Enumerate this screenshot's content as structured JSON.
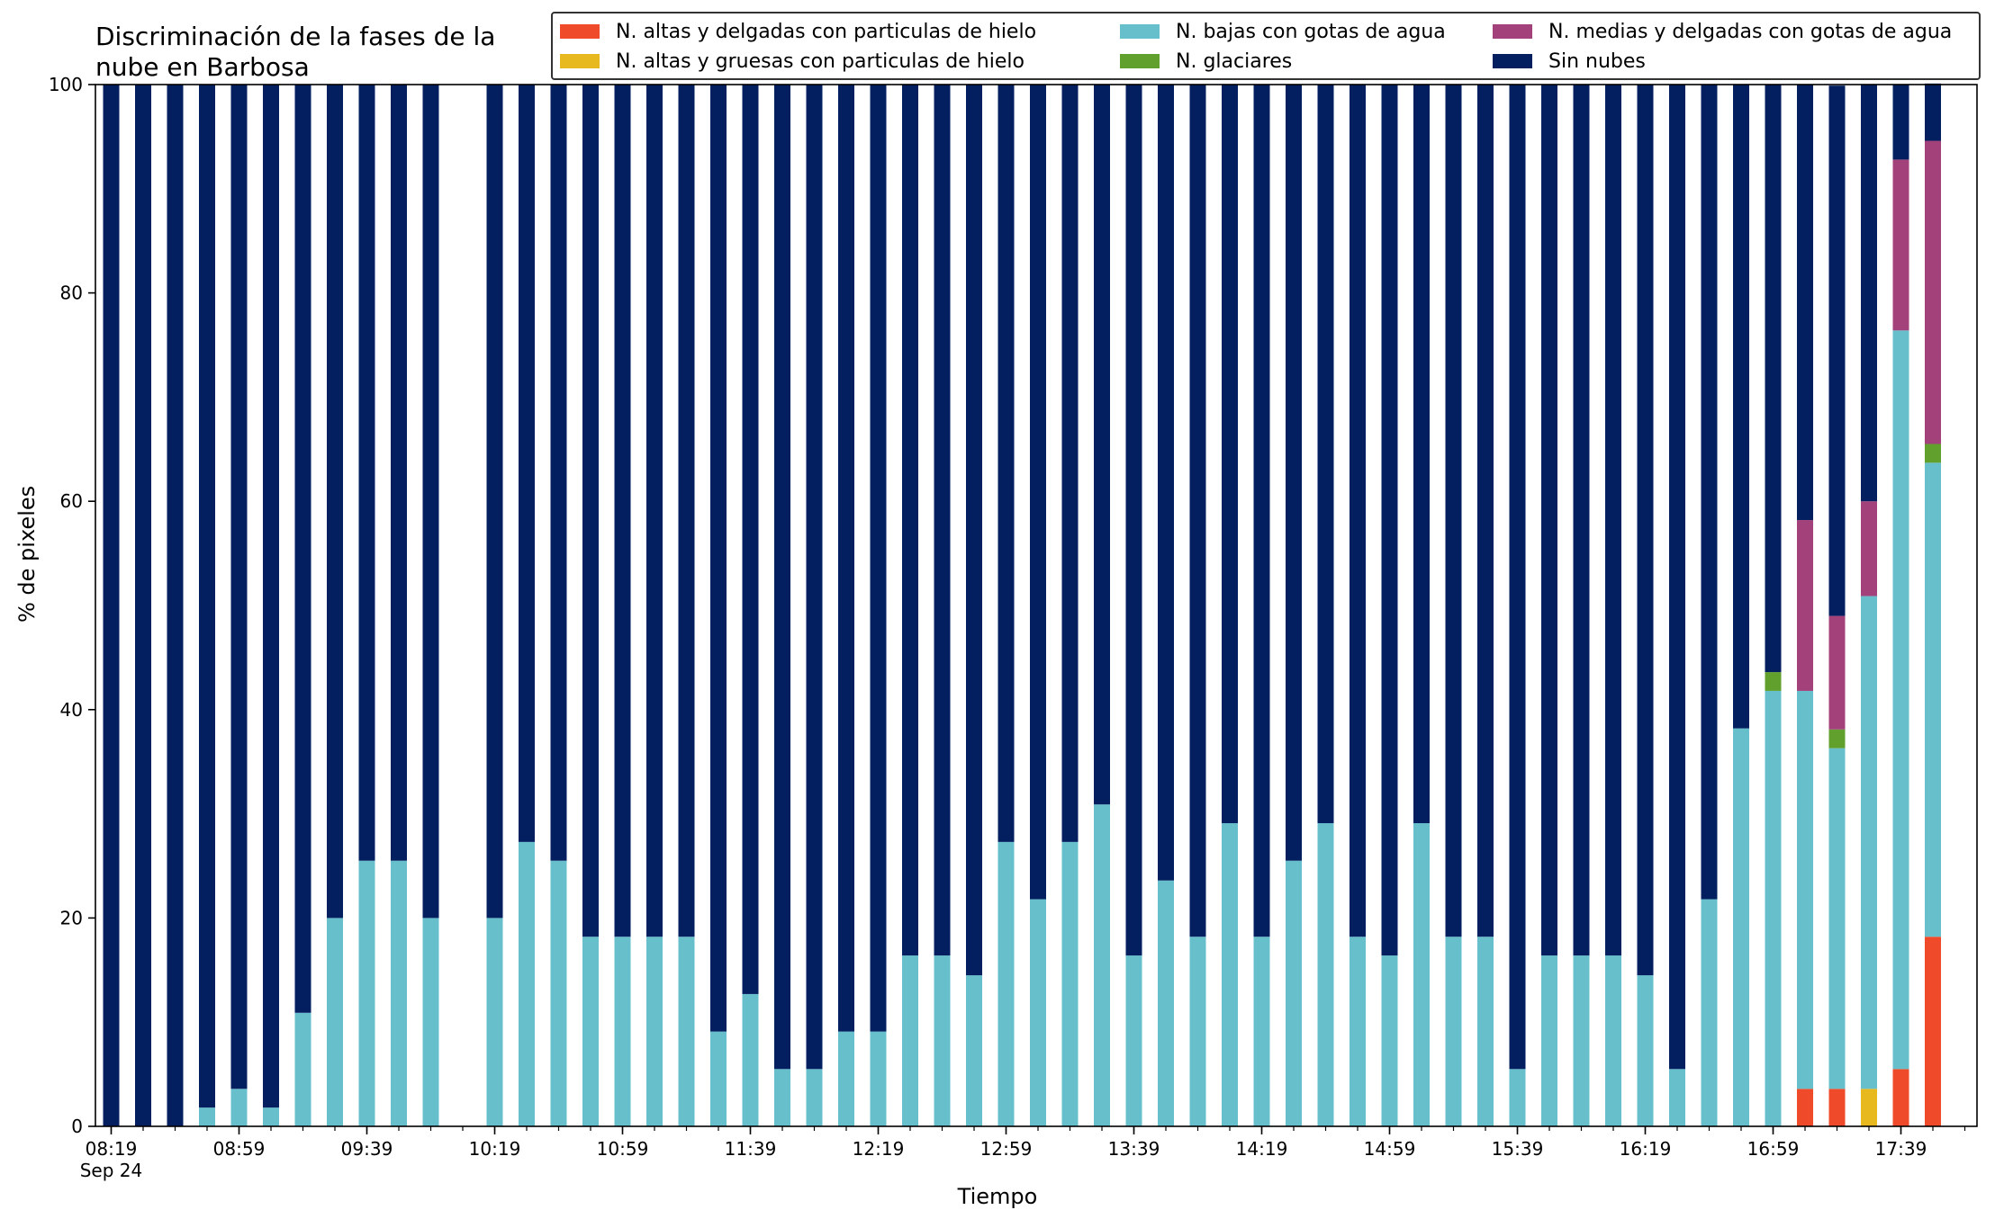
{
  "chart_data": {
    "type": "bar",
    "stacked": true,
    "title": "Discriminación de la fases de la\nnube en Barbosa",
    "xlabel": "Tiempo",
    "ylabel": "% de pixeles",
    "ylim": [
      0,
      100
    ],
    "yticks": [
      0,
      20,
      40,
      60,
      80,
      100
    ],
    "xticks": [
      "08:19\nSep 24",
      "08:59",
      "09:39",
      "10:19",
      "10:59",
      "11:39",
      "12:19",
      "12:59",
      "13:39",
      "14:19",
      "14:59",
      "15:39",
      "16:19",
      "16:59",
      "17:39"
    ],
    "legend_position": "top-right",
    "bar_count": 58,
    "series": [
      {
        "name": "N. altas y delgadas con particulas de hielo",
        "color": "#ef4a2a",
        "values": [
          0,
          0,
          0,
          0,
          0,
          0,
          0,
          0,
          0,
          0,
          0,
          0,
          0,
          0,
          0,
          0,
          0,
          0,
          0,
          0,
          0,
          0,
          0,
          0,
          0,
          0,
          0,
          0,
          0,
          0,
          0,
          0,
          0,
          0,
          0,
          0,
          0,
          0,
          0,
          0,
          0,
          0,
          0,
          0,
          0,
          0,
          0,
          0,
          0,
          0,
          0,
          0,
          0,
          3.6,
          3.6,
          0,
          5.5,
          18.2
        ]
      },
      {
        "name": "N. altas y gruesas con particulas de hielo",
        "color": "#e8b81f",
        "values": [
          0,
          0,
          0,
          0,
          0,
          0,
          0,
          0,
          0,
          0,
          0,
          0,
          0,
          0,
          0,
          0,
          0,
          0,
          0,
          0,
          0,
          0,
          0,
          0,
          0,
          0,
          0,
          0,
          0,
          0,
          0,
          0,
          0,
          0,
          0,
          0,
          0,
          0,
          0,
          0,
          0,
          0,
          0,
          0,
          0,
          0,
          0,
          0,
          0,
          0,
          0,
          0,
          0,
          0,
          0,
          3.6,
          0,
          0
        ]
      },
      {
        "name": "N. bajas con gotas de agua",
        "color": "#67bfcc",
        "values": [
          0,
          0,
          0,
          1.8,
          3.6,
          1.8,
          10.9,
          20,
          25.5,
          25.5,
          20,
          null,
          20,
          27.3,
          25.5,
          18.2,
          18.2,
          18.2,
          18.2,
          9.1,
          12.7,
          5.5,
          5.5,
          9.1,
          9.1,
          16.4,
          16.4,
          14.5,
          27.3,
          21.8,
          27.3,
          30.9,
          16.4,
          23.6,
          18.2,
          29.1,
          18.2,
          25.5,
          29.1,
          18.2,
          16.4,
          29.1,
          18.2,
          18.2,
          5.5,
          16.4,
          16.4,
          16.4,
          14.5,
          5.5,
          21.8,
          38.2,
          41.8,
          38.2,
          32.7,
          47.3,
          70.9,
          45.5
        ]
      },
      {
        "name": "N. glaciares",
        "color": "#62a02e",
        "values": [
          0,
          0,
          0,
          0,
          0,
          0,
          0,
          0,
          0,
          0,
          0,
          0,
          0,
          0,
          0,
          0,
          0,
          0,
          0,
          0,
          0,
          0,
          0,
          0,
          0,
          0,
          0,
          0,
          0,
          0,
          0,
          0,
          0,
          0,
          0,
          0,
          0,
          0,
          0,
          0,
          0,
          0,
          0,
          0,
          0,
          0,
          0,
          0,
          0,
          0,
          0,
          0,
          1.8,
          0,
          1.8,
          0,
          0,
          1.8
        ]
      },
      {
        "name": "N. medias y delgadas con gotas de agua",
        "color": "#a3427a",
        "values": [
          0,
          0,
          0,
          0,
          0,
          0,
          0,
          0,
          0,
          0,
          0,
          0,
          0,
          0,
          0,
          0,
          0,
          0,
          0,
          0,
          0,
          0,
          0,
          0,
          0,
          0,
          0,
          0,
          0,
          0,
          0,
          0,
          0,
          0,
          0,
          0,
          0,
          0,
          0,
          0,
          0,
          0,
          0,
          0,
          0,
          0,
          0,
          0,
          0,
          0,
          0,
          0,
          0,
          16.4,
          10.9,
          9.1,
          16.4,
          29.1
        ]
      },
      {
        "name": "Sin nubes",
        "color": "#031f60",
        "values": [
          100,
          100,
          100,
          98.2,
          96.4,
          98.2,
          89.1,
          80,
          74.5,
          74.5,
          80,
          null,
          80,
          72.7,
          74.5,
          81.8,
          81.8,
          81.8,
          81.8,
          90.9,
          87.3,
          94.5,
          94.5,
          90.9,
          90.9,
          83.6,
          83.6,
          85.5,
          72.7,
          78.2,
          72.7,
          69.1,
          83.6,
          76.4,
          81.8,
          70.9,
          81.8,
          74.5,
          70.9,
          81.8,
          83.6,
          70.9,
          81.8,
          81.8,
          94.5,
          83.6,
          83.6,
          83.6,
          85.5,
          94.5,
          78.2,
          61.8,
          56.4,
          41.8,
          50.9,
          40,
          7.2,
          5.5
        ]
      }
    ]
  }
}
